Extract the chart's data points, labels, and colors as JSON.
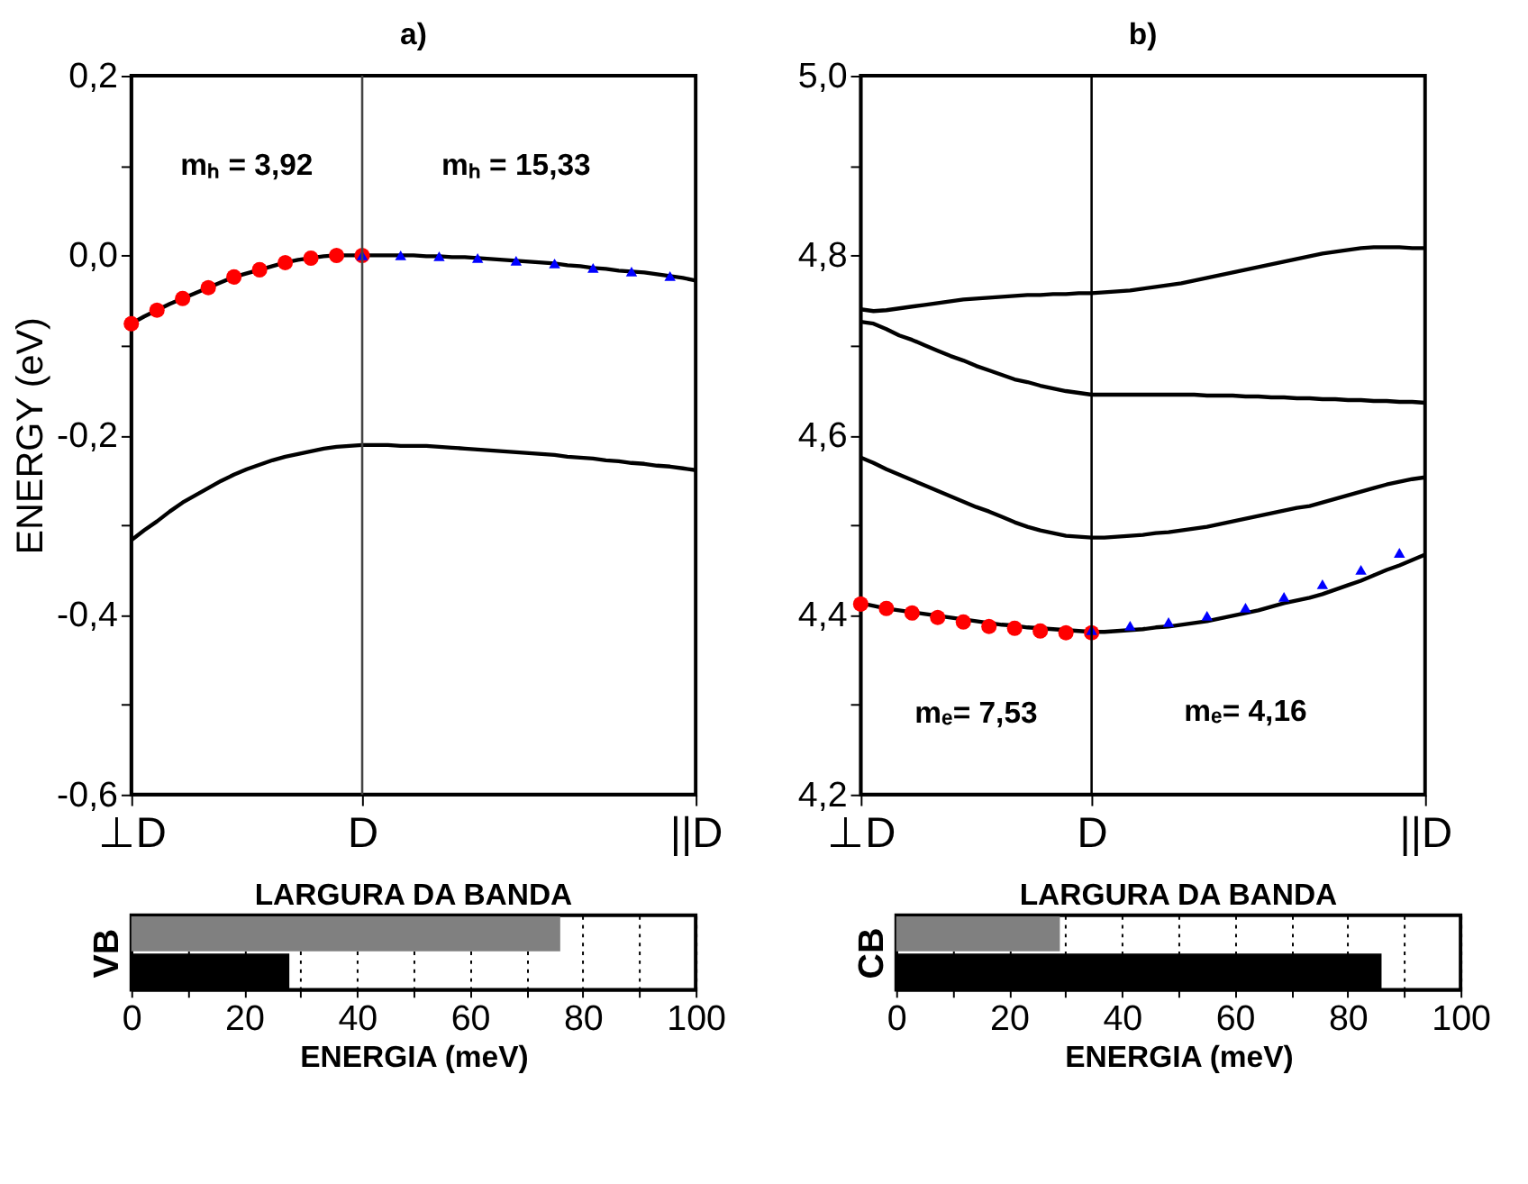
{
  "chart_data": [
    {
      "type": "line",
      "title": "a)",
      "ylabel": "ENERGY (eV)",
      "ylim": [
        -0.6,
        0.2
      ],
      "categories": [
        "⊥D",
        null,
        null,
        null,
        null,
        null,
        null,
        null,
        null,
        null,
        null,
        null,
        null,
        null,
        null,
        null,
        null,
        null,
        "D",
        null,
        null,
        null,
        null,
        null,
        null,
        null,
        null,
        null,
        null,
        null,
        null,
        null,
        null,
        null,
        null,
        null,
        null,
        null,
        null,
        null,
        null,
        null,
        null,
        null,
        "||D"
      ],
      "yticks": [
        {
          "value": -0.6,
          "label": "-0,6"
        },
        {
          "value": -0.5,
          "label": null
        },
        {
          "value": -0.4,
          "label": "-0,4"
        },
        {
          "value": -0.3,
          "label": null
        },
        {
          "value": -0.2,
          "label": "-0,2"
        },
        {
          "value": -0.1,
          "label": null
        },
        {
          "value": 0,
          "label": "0,0"
        },
        {
          "value": 0.1,
          "label": null
        },
        {
          "value": 0.2,
          "label": "0,2"
        }
      ],
      "series": [
        {
          "type": "line",
          "color": "#000000",
          "values": [
            -0.076,
            -0.068,
            -0.061,
            -0.054,
            -0.048,
            -0.042,
            -0.036,
            -0.03,
            -0.024,
            -0.02,
            -0.016,
            -0.012,
            -0.008,
            -0.005,
            -0.003,
            -0.001,
            0,
            0,
            0,
            0,
            0,
            0,
            0,
            -0.001,
            -0.001,
            -0.002,
            -0.002,
            -0.003,
            -0.004,
            -0.005,
            -0.006,
            -0.007,
            -0.008,
            -0.009,
            -0.011,
            -0.012,
            -0.014,
            -0.015,
            -0.017,
            -0.018,
            -0.019,
            -0.021,
            -0.023,
            -0.025,
            -0.028
          ]
        },
        {
          "type": "line",
          "color": "#000000",
          "values": [
            -0.317,
            -0.306,
            -0.296,
            -0.285,
            -0.275,
            -0.267,
            -0.259,
            -0.251,
            -0.244,
            -0.238,
            -0.233,
            -0.228,
            -0.224,
            -0.221,
            -0.218,
            -0.215,
            -0.213,
            -0.212,
            -0.211,
            -0.211,
            -0.211,
            -0.212,
            -0.212,
            -0.212,
            -0.213,
            -0.214,
            -0.215,
            -0.216,
            -0.217,
            -0.218,
            -0.219,
            -0.22,
            -0.221,
            -0.222,
            -0.224,
            -0.225,
            -0.226,
            -0.228,
            -0.229,
            -0.231,
            -0.232,
            -0.234,
            -0.235,
            -0.237,
            -0.239
          ]
        },
        {
          "type": "scatter",
          "marker": "circle",
          "color": "#ff0000",
          "values": [
            -0.076,
            null,
            -0.061,
            null,
            -0.048,
            null,
            -0.036,
            null,
            -0.024,
            null,
            -0.016,
            null,
            -0.008,
            null,
            -0.003,
            null,
            0,
            null,
            0,
            null,
            null,
            null,
            null,
            null,
            null,
            null,
            null,
            null,
            null,
            null,
            null,
            null,
            null,
            null,
            null,
            null,
            null,
            null,
            null,
            null,
            null,
            null,
            null,
            null,
            null
          ]
        },
        {
          "type": "scatter",
          "marker": "triangle",
          "color": "#0000ff",
          "values": [
            null,
            null,
            null,
            null,
            null,
            null,
            null,
            null,
            null,
            null,
            null,
            null,
            null,
            null,
            null,
            null,
            null,
            null,
            0,
            null,
            null,
            0,
            null,
            null,
            -0.001,
            null,
            null,
            -0.003,
            null,
            null,
            -0.006,
            null,
            null,
            -0.009,
            null,
            null,
            -0.014,
            null,
            null,
            -0.018,
            null,
            null,
            -0.023,
            null,
            null
          ]
        }
      ],
      "ref_lines": [
        {
          "axis": "x",
          "value": "D",
          "color": "#444444"
        }
      ],
      "annotations": [
        "mₕ = 3,92",
        "mₕ = 15,33"
      ]
    },
    {
      "type": "line",
      "title": "b)",
      "ylim": [
        4.2,
        5.0
      ],
      "categories": [
        "⊥D",
        null,
        null,
        null,
        null,
        null,
        null,
        null,
        null,
        null,
        null,
        null,
        null,
        null,
        null,
        null,
        null,
        null,
        "D",
        null,
        null,
        null,
        null,
        null,
        null,
        null,
        null,
        null,
        null,
        null,
        null,
        null,
        null,
        null,
        null,
        null,
        null,
        null,
        null,
        null,
        null,
        null,
        null,
        null,
        "||D"
      ],
      "yticks": [
        {
          "value": 4.2,
          "label": "4,2"
        },
        {
          "value": 4.3,
          "label": null
        },
        {
          "value": 4.4,
          "label": "4,4"
        },
        {
          "value": 4.5,
          "label": null
        },
        {
          "value": 4.6,
          "label": "4,6"
        },
        {
          "value": 4.7,
          "label": null
        },
        {
          "value": 4.8,
          "label": "4,8"
        },
        {
          "value": 4.9,
          "label": null
        },
        {
          "value": 5.0,
          "label": "5,0"
        }
      ],
      "series": [
        {
          "type": "line",
          "color": "#000000",
          "values": [
            4.74,
            4.738,
            4.739,
            4.741,
            4.743,
            4.745,
            4.747,
            4.749,
            4.751,
            4.752,
            4.753,
            4.754,
            4.755,
            4.756,
            4.756,
            4.757,
            4.757,
            4.758,
            4.758,
            4.759,
            4.76,
            4.761,
            4.763,
            4.765,
            4.767,
            4.769,
            4.772,
            4.775,
            4.778,
            4.781,
            4.784,
            4.787,
            4.79,
            4.793,
            4.796,
            4.799,
            4.802,
            4.804,
            4.806,
            4.808,
            4.809,
            4.809,
            4.809,
            4.808,
            4.808
          ]
        },
        {
          "type": "line",
          "color": "#000000",
          "values": [
            4.726,
            4.724,
            4.718,
            4.711,
            4.706,
            4.7,
            4.694,
            4.688,
            4.683,
            4.677,
            4.672,
            4.667,
            4.662,
            4.659,
            4.655,
            4.652,
            4.649,
            4.647,
            4.645,
            4.645,
            4.645,
            4.645,
            4.645,
            4.645,
            4.645,
            4.645,
            4.645,
            4.644,
            4.644,
            4.644,
            4.643,
            4.643,
            4.642,
            4.642,
            4.641,
            4.641,
            4.64,
            4.64,
            4.639,
            4.639,
            4.638,
            4.638,
            4.637,
            4.637,
            4.636
          ]
        },
        {
          "type": "line",
          "color": "#000000",
          "values": [
            4.575,
            4.569,
            4.562,
            4.556,
            4.55,
            4.544,
            4.538,
            4.532,
            4.526,
            4.52,
            4.515,
            4.509,
            4.503,
            4.498,
            4.494,
            4.491,
            4.488,
            4.487,
            4.486,
            4.486,
            4.487,
            4.488,
            4.489,
            4.491,
            4.492,
            4.494,
            4.496,
            4.498,
            4.501,
            4.504,
            4.507,
            4.51,
            4.513,
            4.516,
            4.519,
            4.521,
            4.525,
            4.529,
            4.533,
            4.537,
            4.541,
            4.545,
            4.548,
            4.551,
            4.553
          ]
        },
        {
          "type": "line",
          "color": "#000000",
          "values": [
            4.413,
            4.41,
            4.407,
            4.405,
            4.403,
            4.401,
            4.399,
            4.397,
            4.395,
            4.393,
            4.391,
            4.389,
            4.388,
            4.386,
            4.385,
            4.384,
            4.383,
            4.382,
            4.381,
            4.381,
            4.382,
            4.383,
            4.384,
            4.386,
            4.387,
            4.389,
            4.391,
            4.393,
            4.396,
            4.399,
            4.402,
            4.405,
            4.409,
            4.413,
            4.416,
            4.419,
            4.423,
            4.428,
            4.433,
            4.438,
            4.444,
            4.45,
            4.455,
            4.461,
            4.467
          ]
        },
        {
          "type": "scatter",
          "marker": "circle",
          "color": "#ff0000",
          "values": [
            4.412,
            null,
            4.407,
            null,
            4.402,
            null,
            4.397,
            null,
            4.392,
            null,
            4.387,
            null,
            4.385,
            null,
            4.382,
            null,
            4.38,
            null,
            4.38,
            null,
            null,
            null,
            null,
            null,
            null,
            null,
            null,
            null,
            null,
            null,
            null,
            null,
            null,
            null,
            null,
            null,
            null,
            null,
            null,
            null,
            null,
            null,
            null,
            null,
            null
          ]
        },
        {
          "type": "scatter",
          "marker": "triangle",
          "color": "#0000ff",
          "values": [
            null,
            null,
            null,
            null,
            null,
            null,
            null,
            null,
            null,
            null,
            null,
            null,
            null,
            null,
            null,
            null,
            null,
            null,
            4.383,
            null,
            null,
            4.388,
            null,
            null,
            4.392,
            null,
            null,
            4.399,
            null,
            null,
            4.408,
            null,
            null,
            4.42,
            null,
            null,
            4.434,
            null,
            null,
            4.45,
            null,
            null,
            4.469,
            null,
            null
          ]
        }
      ],
      "ref_lines": [
        {
          "axis": "x",
          "value": "D",
          "color": "#000000"
        }
      ],
      "annotations": [
        "mₑ= 7,53",
        "mₑ= 4,16"
      ]
    },
    {
      "type": "bar",
      "orientation": "horizontal",
      "title": "LARGURA DA BANDA",
      "xlabel": "ENERGIA (meV)",
      "ylabel": "VB",
      "categories": [
        null,
        null
      ],
      "values": [
        76,
        28
      ],
      "colors": [
        "#808080",
        "#000000"
      ],
      "xlim": [
        0,
        100
      ],
      "grid": "x",
      "xticks": [
        0,
        {
          "value": 10,
          "label": null
        },
        20,
        {
          "value": 30,
          "label": null
        },
        40,
        {
          "value": 50,
          "label": null
        },
        60,
        {
          "value": 70,
          "label": null
        },
        80,
        {
          "value": 90,
          "label": null
        },
        100
      ]
    },
    {
      "type": "bar",
      "orientation": "horizontal",
      "title": "LARGURA DA BANDA",
      "xlabel": "ENERGIA (meV)",
      "ylabel": "CB",
      "categories": [
        null,
        null
      ],
      "values": [
        29,
        86
      ],
      "colors": [
        "#808080",
        "#000000"
      ],
      "xlim": [
        0,
        100
      ],
      "grid": "x",
      "xticks": [
        0,
        {
          "value": 10,
          "label": null
        },
        20,
        {
          "value": 30,
          "label": null
        },
        40,
        {
          "value": 50,
          "label": null
        },
        60,
        {
          "value": 70,
          "label": null
        },
        80,
        {
          "value": 90,
          "label": null
        },
        100
      ]
    }
  ]
}
